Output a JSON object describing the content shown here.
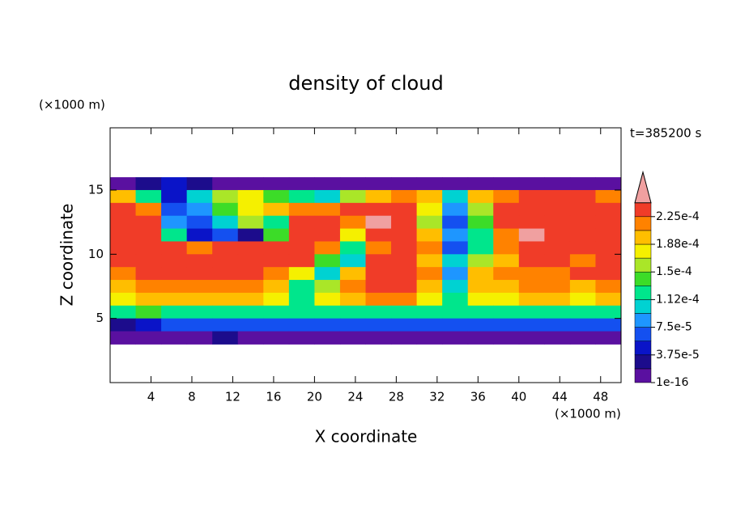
{
  "chart_data": {
    "type": "contour",
    "title": "density of cloud",
    "time_label": "t=385200 s",
    "x_label": "X coordinate",
    "y_label": "Z coordinate",
    "x_unit": "(×1000 m)",
    "y_unit": "(×1000 m)",
    "xlim": [
      0,
      50
    ],
    "ylim": [
      0,
      19.85
    ],
    "xticks": [
      4,
      8,
      12,
      16,
      20,
      24,
      28,
      32,
      36,
      40,
      44,
      48
    ],
    "yticks": [
      5,
      10,
      15
    ],
    "x": [
      1.25,
      3.75,
      6.25,
      8.75,
      11.25,
      13.75,
      16.25,
      18.75,
      21.25,
      23.75,
      26.25,
      28.75,
      31.25,
      33.75,
      36.25,
      38.75,
      41.25,
      43.75,
      46.25,
      48.75
    ],
    "y": [
      16.5,
      15.5,
      14.5,
      13.5,
      12.5,
      11.5,
      10.5,
      9.5,
      8.5,
      7.5,
      6.5,
      5.5,
      4.5,
      3.5
    ],
    "z": [
      [
        null,
        null,
        null,
        null,
        null,
        null,
        null,
        null,
        null,
        null,
        null,
        null,
        null,
        null,
        null,
        null,
        null,
        null,
        null,
        null
      ],
      [
        1e-05,
        2.8e-05,
        4.7e-05,
        2.8e-05,
        1e-05,
        1e-05,
        1e-05,
        1e-05,
        1e-05,
        1e-05,
        1e-05,
        1e-05,
        1e-05,
        1e-05,
        1e-05,
        1e-05,
        1e-05,
        1e-05,
        1e-05,
        1e-05
      ],
      [
        0.000197,
        0.000122,
        4.7e-05,
        0.000103,
        0.00016,
        0.000178,
        0.00014,
        0.000122,
        0.000103,
        0.00016,
        0.000197,
        0.000215,
        0.000197,
        0.000103,
        0.000197,
        0.000215,
        0.000234,
        0.000234,
        0.000234,
        0.000215
      ],
      [
        0.000234,
        0.000215,
        6.5e-05,
        8.4e-05,
        0.00014,
        0.000178,
        0.000197,
        0.000215,
        0.000215,
        0.000234,
        0.000234,
        0.000234,
        0.000178,
        8.4e-05,
        0.00016,
        0.000234,
        0.000234,
        0.000234,
        0.000234,
        0.000234
      ],
      [
        0.000234,
        0.000234,
        8.4e-05,
        6.5e-05,
        0.000103,
        0.00016,
        0.000122,
        0.000234,
        0.000234,
        0.000215,
        0.00025,
        0.000234,
        0.00016,
        6.5e-05,
        0.00014,
        0.000234,
        0.000234,
        0.000234,
        0.000234,
        0.000234
      ],
      [
        0.000234,
        0.000234,
        0.000122,
        4.7e-05,
        6.5e-05,
        2.8e-05,
        0.00014,
        0.000234,
        0.000234,
        0.000178,
        0.000234,
        0.000234,
        0.000197,
        8.4e-05,
        0.000122,
        0.000215,
        0.00025,
        0.000234,
        0.000234,
        0.000234
      ],
      [
        0.000234,
        0.000234,
        0.000234,
        0.000215,
        0.000234,
        0.000234,
        0.000234,
        0.000234,
        0.000215,
        0.000122,
        0.000215,
        0.000234,
        0.000215,
        6.5e-05,
        0.000122,
        0.000215,
        0.000234,
        0.000234,
        0.000234,
        0.000234
      ],
      [
        0.000234,
        0.000234,
        0.000234,
        0.000234,
        0.000234,
        0.000234,
        0.000234,
        0.000234,
        0.00014,
        0.000103,
        0.000234,
        0.000234,
        0.000197,
        0.000103,
        0.00016,
        0.000197,
        0.000234,
        0.000234,
        0.000215,
        0.000234
      ],
      [
        0.000215,
        0.000234,
        0.000234,
        0.000234,
        0.000234,
        0.000234,
        0.000215,
        0.000178,
        0.000103,
        0.000197,
        0.000234,
        0.000234,
        0.000215,
        8.4e-05,
        0.000197,
        0.000215,
        0.000215,
        0.000215,
        0.000234,
        0.000234
      ],
      [
        0.000197,
        0.000215,
        0.000215,
        0.000215,
        0.000215,
        0.000215,
        0.000197,
        0.000122,
        0.00016,
        0.000215,
        0.000234,
        0.000234,
        0.000197,
        0.000103,
        0.000197,
        0.000197,
        0.000215,
        0.000215,
        0.000197,
        0.000215
      ],
      [
        0.000178,
        0.000197,
        0.000197,
        0.000197,
        0.000197,
        0.000197,
        0.000178,
        0.000122,
        0.000178,
        0.000197,
        0.000215,
        0.000215,
        0.000178,
        0.000122,
        0.000178,
        0.000178,
        0.000197,
        0.000197,
        0.000178,
        0.000197
      ],
      [
        0.000122,
        0.00014,
        0.000122,
        0.000122,
        0.000122,
        0.000122,
        0.000122,
        0.000122,
        0.000122,
        0.000122,
        0.000122,
        0.000122,
        0.000122,
        0.000122,
        0.000122,
        0.000122,
        0.000122,
        0.000122,
        0.000122,
        0.000122
      ],
      [
        2.8e-05,
        4.7e-05,
        6.5e-05,
        6.5e-05,
        6.5e-05,
        6.5e-05,
        6.5e-05,
        6.5e-05,
        6.5e-05,
        6.5e-05,
        6.5e-05,
        6.5e-05,
        6.5e-05,
        6.5e-05,
        6.5e-05,
        6.5e-05,
        6.5e-05,
        6.5e-05,
        6.5e-05,
        6.5e-05
      ],
      [
        1e-05,
        1e-05,
        1e-05,
        1e-05,
        2.8e-05,
        1e-05,
        1e-05,
        1e-05,
        1e-05,
        1e-05,
        1e-05,
        1e-05,
        1e-05,
        1e-05,
        1e-05,
        1e-05,
        1e-05,
        1e-05,
        1e-05,
        1e-05
      ]
    ],
    "colorbar": {
      "levels": [
        1e-16,
        1.875e-05,
        3.75e-05,
        5.625e-05,
        7.5e-05,
        9.375e-05,
        0.000112,
        0.00013125,
        0.00015,
        0.00016875,
        0.000188,
        0.00020625,
        0.000225,
        0.00024375
      ],
      "colors": [
        "#5a10a0",
        "#1c0c8c",
        "#0a14c8",
        "#1450f0",
        "#1e96ff",
        "#00d2d2",
        "#00e68c",
        "#3cdc28",
        "#aae628",
        "#f5f000",
        "#ffbe00",
        "#ff8200",
        "#f03c28",
        "#f0a0a0"
      ],
      "ticks": [
        1e-16,
        {
          "value": 3.75e-05,
          "label": "3.75e-5"
        },
        {
          "value": 7.5e-05,
          "label": "7.5e-5"
        },
        {
          "value": 0.000112,
          "label": "1.12e-4"
        },
        {
          "value": 0.00015,
          "label": "1.5e-4"
        },
        {
          "value": 0.000188,
          "label": "1.88e-4"
        },
        {
          "value": 0.000225,
          "label": "2.25e-4"
        }
      ]
    }
  }
}
